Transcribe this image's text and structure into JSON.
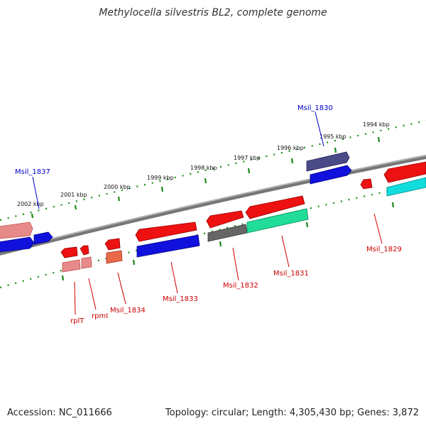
{
  "title": "Methylocella silvestris BL2, complete genome",
  "footer": {
    "accession": "Accession: NC_011666",
    "summary": "Topology: circular; Length: 4,305,430 bp; Genes: 3,872"
  },
  "kbp_labels": [
    "2002 kbp",
    "2001 kbp",
    "2000 kbp",
    "1999 kbp",
    "1998 kbp",
    "1997 kbp",
    "1996 kbp",
    "1995 kbp",
    "1994 kbp"
  ],
  "gene_labels": {
    "Msil_1837": "Msil_1837",
    "Msil_1830": "Msil_1830",
    "rplT": "rplT",
    "rpmI": "rpmI",
    "Msil_1834": "Msil_1834",
    "Msil_1833": "Msil_1833",
    "Msil_1832": "Msil_1832",
    "Msil_1831": "Msil_1831",
    "Msil_1829": "Msil_1829"
  },
  "colors": {
    "backbone": "#888888",
    "tick": "#1a8a1a",
    "label_blue": "#0000cc",
    "label_red": "#cc0000",
    "red": "#ee1111",
    "pink": "#e88a8a",
    "blue": "#1111dd",
    "navy": "#4a4a88",
    "gray": "#666666",
    "green": "#22dd99",
    "cyan": "#11dddd",
    "salmon": "#e86a4a"
  }
}
